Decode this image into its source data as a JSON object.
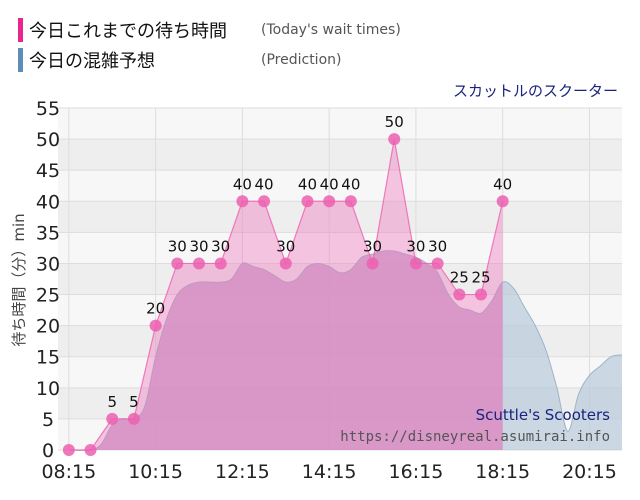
{
  "legend": [
    {
      "label": "今日これまでの待ち時間",
      "note": "(Today's wait times)",
      "color": "#e8278e"
    },
    {
      "label": "今日の混雑予想",
      "note": "(Prediction)",
      "color": "#5b8db8"
    }
  ],
  "attraction_name": "スカットルのスクーター",
  "watermark": {
    "name": "Scuttle's Scooters",
    "url": "https://disneyreal.asumirai.info"
  },
  "chart_data": {
    "type": "area",
    "ylabel": "待ち時間（分）min",
    "ylim": [
      0,
      55
    ],
    "yticks": [
      0,
      5,
      10,
      15,
      20,
      25,
      30,
      35,
      40,
      45,
      50,
      55
    ],
    "xlim": [
      "08:00",
      "21:00"
    ],
    "xticks": [
      "08:15",
      "10:15",
      "12:15",
      "14:15",
      "16:15",
      "18:15",
      "20:15"
    ],
    "series": [
      {
        "name": "今日これまでの待ち時間",
        "color": "#e8278e",
        "x": [
          "08:15",
          "08:45",
          "09:15",
          "09:45",
          "10:15",
          "10:45",
          "11:15",
          "11:45",
          "12:15",
          "12:45",
          "13:15",
          "13:45",
          "14:15",
          "14:45",
          "15:15",
          "15:45",
          "16:15",
          "16:45",
          "17:15",
          "17:45",
          "18:15"
        ],
        "values": [
          0,
          0,
          5,
          5,
          20,
          30,
          30,
          30,
          40,
          40,
          30,
          40,
          40,
          40,
          30,
          50,
          30,
          30,
          25,
          25,
          40
        ]
      },
      {
        "name": "今日の混雑予想",
        "color": "#5b8db8",
        "x": [
          "08:15",
          "08:45",
          "09:00",
          "09:15",
          "09:30",
          "09:45",
          "10:00",
          "10:15",
          "10:30",
          "10:45",
          "11:00",
          "11:15",
          "11:30",
          "11:45",
          "12:00",
          "12:15",
          "12:30",
          "12:45",
          "13:00",
          "13:15",
          "13:30",
          "13:45",
          "14:00",
          "14:15",
          "14:30",
          "14:45",
          "15:00",
          "15:15",
          "15:30",
          "15:45",
          "16:00",
          "16:15",
          "16:30",
          "16:45",
          "17:00",
          "17:15",
          "17:30",
          "17:45",
          "18:00",
          "18:15",
          "18:30",
          "18:45",
          "19:00",
          "19:15",
          "19:30",
          "19:45",
          "20:00",
          "20:15",
          "20:30",
          "20:45",
          "21:00"
        ],
        "values": [
          0,
          0,
          1,
          4,
          5,
          5,
          7,
          15,
          21,
          25,
          26.5,
          27,
          27,
          27,
          27.5,
          30,
          29.5,
          29,
          28,
          27,
          27.5,
          29.5,
          30,
          29.5,
          28.5,
          29,
          31,
          31.5,
          32,
          32,
          31.5,
          31,
          30,
          28.5,
          25,
          23,
          22.5,
          22,
          24,
          27,
          26,
          23,
          20,
          16,
          10,
          3,
          9,
          12,
          13.5,
          15,
          15.3
        ]
      }
    ]
  }
}
